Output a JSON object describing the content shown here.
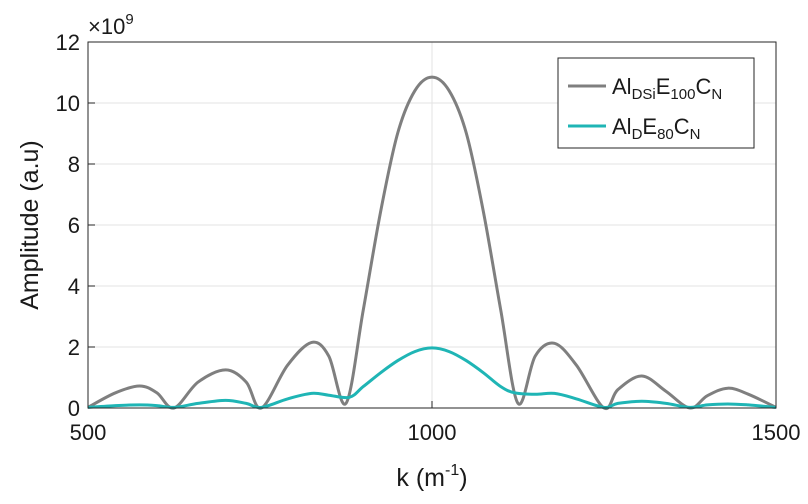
{
  "chart_data": {
    "type": "line",
    "xlabel": "k (m",
    "xlabel_sup": "-1",
    "xlabel_end": ")",
    "ylabel": "Amplitude (a.u)",
    "y_multiplier": "×10",
    "y_multiplier_exp": "9",
    "xlim": [
      500,
      1500
    ],
    "ylim": [
      0,
      12
    ],
    "x_ticks": [
      500,
      1000,
      1500
    ],
    "y_ticks": [
      0,
      2,
      4,
      6,
      8,
      10,
      12
    ],
    "x_tick_labels": [
      "500",
      "1000",
      "1500"
    ],
    "y_tick_labels": [
      "0",
      "2",
      "4",
      "6",
      "8",
      "10",
      "12"
    ],
    "grid": true,
    "legend_position": "top-right",
    "series": [
      {
        "name_parts": [
          "Al",
          "DSi",
          "E",
          "100",
          "C",
          "N"
        ],
        "color": "#7f7f7f",
        "x": [
          500,
          540,
          575,
          600,
          625,
          660,
          700,
          730,
          752,
          790,
          825,
          850,
          875,
          900,
          925,
          950,
          975,
          1000,
          1025,
          1050,
          1075,
          1100,
          1125,
          1150,
          1178,
          1210,
          1250,
          1270,
          1305,
          1340,
          1375,
          1400,
          1430,
          1460,
          1500
        ],
        "y": [
          0.02,
          0.5,
          0.72,
          0.5,
          0.0,
          0.85,
          1.25,
          0.85,
          0.0,
          1.4,
          2.15,
          1.7,
          0.15,
          3.2,
          6.4,
          9.0,
          10.4,
          10.85,
          10.4,
          9.0,
          6.4,
          3.2,
          0.15,
          1.7,
          2.12,
          1.4,
          0.0,
          0.6,
          1.05,
          0.55,
          0.0,
          0.4,
          0.65,
          0.45,
          0.02
        ]
      },
      {
        "name_parts": [
          "Al",
          "D",
          "E",
          "80",
          "C",
          "N"
        ],
        "color": "#1fb5b5",
        "x": [
          500,
          540,
          575,
          600,
          625,
          660,
          700,
          730,
          752,
          790,
          825,
          850,
          880,
          900,
          925,
          950,
          975,
          1000,
          1025,
          1050,
          1075,
          1100,
          1120,
          1150,
          1178,
          1210,
          1250,
          1270,
          1305,
          1340,
          1375,
          1400,
          1430,
          1460,
          1500
        ],
        "y": [
          0.02,
          0.08,
          0.1,
          0.08,
          0.02,
          0.15,
          0.25,
          0.15,
          0.02,
          0.3,
          0.48,
          0.42,
          0.35,
          0.7,
          1.15,
          1.55,
          1.85,
          1.97,
          1.85,
          1.55,
          1.15,
          0.7,
          0.5,
          0.45,
          0.48,
          0.3,
          0.02,
          0.15,
          0.22,
          0.15,
          0.02,
          0.1,
          0.13,
          0.1,
          0.02
        ]
      }
    ]
  }
}
